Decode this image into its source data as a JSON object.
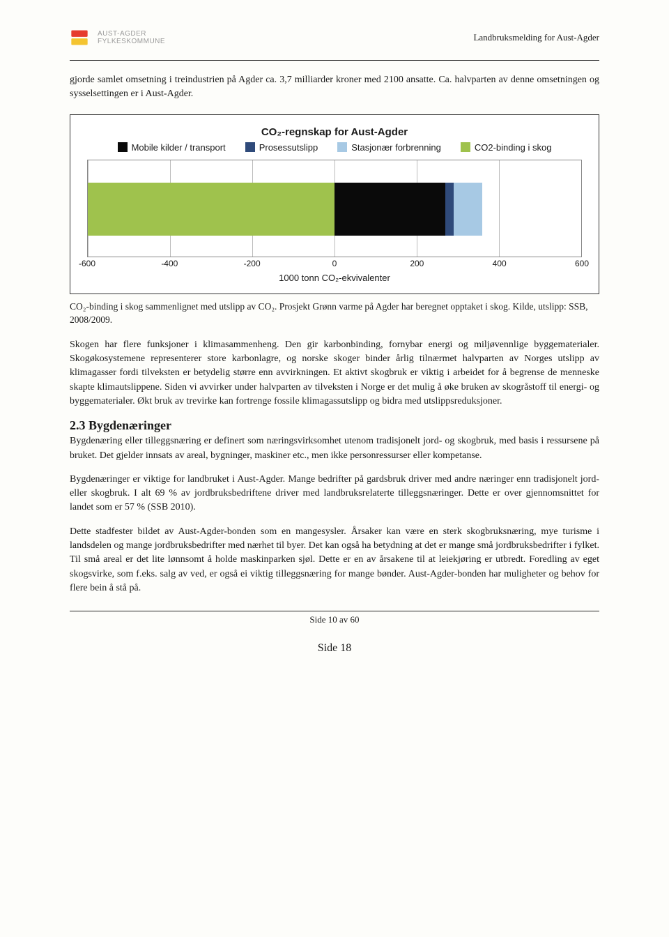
{
  "header": {
    "org_line1": "AUST-AGDER",
    "org_line2": "FYLKESKOMMUNE",
    "doc_title": "Landbruksmelding for Aust-Agder"
  },
  "intro": "gjorde samlet omsetning i treindustrien på Agder ca. 3,7 milliarder kroner med 2100 ansatte. Ca. halvparten av denne omsetningen og sysselsettingen er i Aust-Agder.",
  "chart": {
    "type": "bar-stacked-horizontal",
    "title": "CO₂-regnskap for Aust-Agder",
    "legend": [
      {
        "label": "Mobile kilder / transport",
        "color": "#0a0a0a"
      },
      {
        "label": "Prosessutslipp",
        "color": "#2f4a7a"
      },
      {
        "label": "Stasjonær forbrenning",
        "color": "#a7c9e4"
      },
      {
        "label": "CO2-binding i skog",
        "color": "#9fc24d"
      }
    ],
    "segments": [
      {
        "start": -600,
        "end": 0,
        "color": "#9fc24d"
      },
      {
        "start": 0,
        "end": 270,
        "color": "#0a0a0a"
      },
      {
        "start": 270,
        "end": 290,
        "color": "#2f4a7a"
      },
      {
        "start": 290,
        "end": 360,
        "color": "#a7c9e4"
      }
    ],
    "x_min": -600,
    "x_max": 600,
    "x_ticks": [
      -600,
      -400,
      -200,
      0,
      200,
      400,
      600
    ],
    "x_axis_label": "1000 tonn CO₂-ekvivalenter",
    "grid_color": "#bbbbbb",
    "border_color": "#888888",
    "background": "#ffffff"
  },
  "caption": "CO₂-binding i skog sammenlignet med utslipp av CO₂. Prosjekt Grønn varme på Agder har beregnet opptaket i skog. Kilde, utslipp: SSB, 2008/2009.",
  "para2": "Skogen har flere funksjoner i klimasammenheng. Den gir karbonbinding, fornybar energi og miljøvennlige byggematerialer. Skogøkosystemene representerer store karbonlagre, og norske skoger binder årlig tilnærmet halvparten av Norges utslipp av klimagasser fordi tilveksten er betydelig større enn avvirkningen. Et aktivt skogbruk er viktig i arbeidet for å begrense de menneske skapte klimautslippene. Siden vi avvirker under halvparten av tilveksten i Norge er det mulig å øke bruken av skogråstoff til energi- og byggematerialer. Økt bruk av trevirke kan fortrenge fossile klimagassutslipp og bidra med utslippsreduksjoner.",
  "section": {
    "number": "2.3",
    "title": "Bygdenæringer",
    "p1": "Bygdenæring eller tilleggsnæring er definert som næringsvirksomhet utenom tradisjonelt jord- og skogbruk, med basis i ressursene på bruket. Det gjelder innsats av areal, bygninger, maskiner etc., men ikke personressurser eller kompetanse.",
    "p2": "Bygdenæringer er viktige for landbruket i Aust-Agder. Mange bedrifter på gardsbruk driver med andre næringer enn tradisjonelt jord- eller skogbruk. I alt 69 % av jordbruksbedriftene driver med landbruksrelaterte tilleggsnæringer. Dette er over gjennomsnittet for landet som er 57 % (SSB 2010).",
    "p3": "Dette stadfester bildet av Aust-Agder-bonden som en mangesysler. Årsaker kan være en sterk skogbruksnæring, mye turisme i landsdelen og mange jordbruksbedrifter med nærhet til byer. Det kan også ha betydning at det er mange små jordbruksbedrifter i fylket. Til små areal er det lite lønnsomt å holde maskinparken sjøl. Dette er en av årsakene til at leiekjøring er utbredt. Foredling av eget skogsvirke, som f.eks. salg av ved, er også ei viktig tilleggsnæring for mange bønder. Aust-Agder-bonden har muligheter og behov for flere bein å stå på."
  },
  "footer_inner": "Side 10 av 60",
  "footer_outer": "Side 18"
}
